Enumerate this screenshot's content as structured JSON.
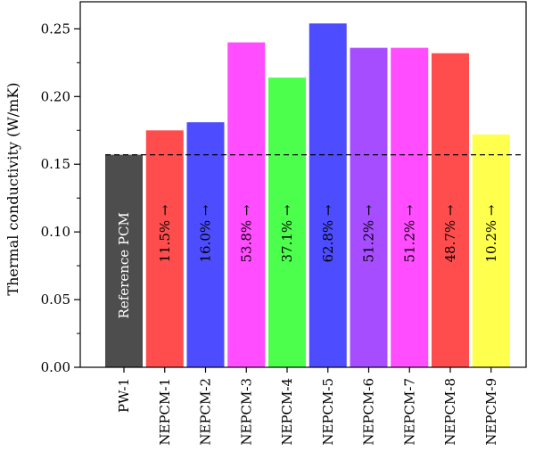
{
  "chart_data": {
    "type": "bar",
    "title": "",
    "xlabel": "",
    "ylabel": "Thermal conductivity (W/mK)",
    "ylim": [
      0,
      0.27
    ],
    "yticks": [
      0.0,
      0.05,
      0.1,
      0.15,
      0.2,
      0.25
    ],
    "ytick_labels": [
      "0.00",
      "0.05",
      "0.10",
      "0.15",
      "0.20",
      "0.25"
    ],
    "categories": [
      "PW-1",
      "NEPCM-1",
      "NEPCM-2",
      "NEPCM-3",
      "NEPCM-4",
      "NEPCM-5",
      "NEPCM-6",
      "NEPCM-7",
      "NEPCM-8",
      "NEPCM-9"
    ],
    "values": [
      0.157,
      0.175,
      0.181,
      0.24,
      0.214,
      0.254,
      0.236,
      0.236,
      0.232,
      0.172
    ],
    "bar_colors": [
      "#4d4d4d",
      "#ff4d4d",
      "#4d4dff",
      "#ff4dff",
      "#4dff4d",
      "#4d4dff",
      "#a64dff",
      "#ff4dff",
      "#ff4d4d",
      "#ffff4d"
    ],
    "bar_labels": [
      "Reference PCM",
      "11.5% →",
      "16.0% →",
      "53.8% →",
      "37.1% →",
      "62.8% →",
      "51.2% →",
      "51.2% →",
      "48.7% →",
      "10.2% →"
    ],
    "reference_line": 0.157,
    "grid": false
  }
}
